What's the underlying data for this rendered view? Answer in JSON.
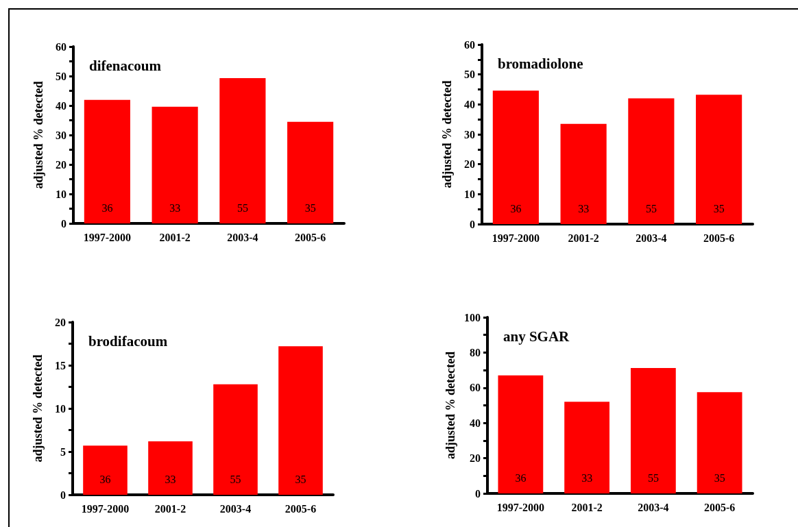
{
  "chart_data": [
    {
      "type": "bar",
      "title": "difenacoum",
      "ylabel": "adjusted % detected",
      "categories": [
        "1997-2000",
        "2001-2",
        "2003-4",
        "2005-6"
      ],
      "values": [
        41.9,
        39.6,
        49.3,
        34.5
      ],
      "color": "#ff0000",
      "ylim": [
        0,
        60
      ],
      "yticks": [
        0,
        10,
        20,
        30,
        40,
        50,
        60
      ],
      "grid": false,
      "annotations": [
        "36",
        "33",
        "55",
        "35"
      ]
    },
    {
      "type": "bar",
      "title": "bromadiolone",
      "ylabel": "adjusted % detected",
      "categories": [
        "1997-2000",
        "2001-2",
        "2003-4",
        "2005-6"
      ],
      "values": [
        44.6,
        33.5,
        42,
        43.2
      ],
      "color": "#ff0000",
      "ylim": [
        0,
        60
      ],
      "yticks": [
        0,
        10,
        20,
        30,
        40,
        50,
        60
      ],
      "grid": false,
      "annotations": [
        "36",
        "33",
        "55",
        "35"
      ]
    },
    {
      "type": "bar",
      "title": "brodifacoum",
      "ylabel": "adjusted % detected",
      "categories": [
        "1997-2000",
        "2001-2",
        "2003-4",
        "2005-6"
      ],
      "values": [
        5.7,
        6.2,
        12.8,
        17.2
      ],
      "color": "#ff0000",
      "ylim": [
        0,
        20
      ],
      "yticks": [
        0,
        5,
        10,
        15,
        20
      ],
      "grid": false,
      "annotations": [
        "36",
        "33",
        "55",
        "35"
      ]
    },
    {
      "type": "bar",
      "title": "any SGAR",
      "ylabel": "adjusted % detected",
      "categories": [
        "1997-2000",
        "2001-2",
        "2003-4",
        "2005-6"
      ],
      "values": [
        67,
        52,
        71.2,
        57.5
      ],
      "color": "#ff0000",
      "ylim": [
        0,
        100
      ],
      "yticks": [
        0,
        20,
        40,
        60,
        80,
        100
      ],
      "grid": false,
      "annotations": [
        "36",
        "33",
        "55",
        "35"
      ]
    }
  ]
}
